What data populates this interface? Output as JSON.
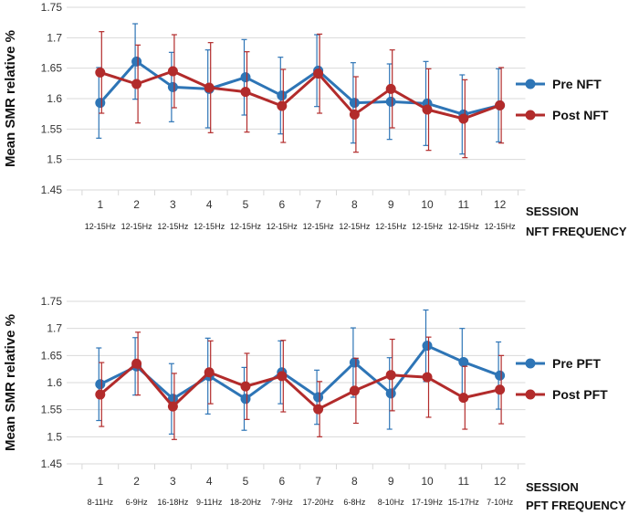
{
  "chart_data": [
    {
      "type": "line",
      "ylabel": "Mean SMR relative  %",
      "ylim": [
        1.45,
        1.75
      ],
      "yticks": [
        "1.45",
        "1.5",
        "1.55",
        "1.6",
        "1.65",
        "1.7",
        "1.75"
      ],
      "yticks_values": [
        1.45,
        1.5,
        1.55,
        1.6,
        1.65,
        1.7,
        1.75
      ],
      "categories": [
        "1",
        "2",
        "3",
        "4",
        "5",
        "6",
        "7",
        "8",
        "9",
        "10",
        "11",
        "12"
      ],
      "sublabels": [
        "12-15Hz",
        "12-15Hz",
        "12-15Hz",
        "12-15Hz",
        "12-15Hz",
        "12-15Hz",
        "12-15Hz",
        "12-15Hz",
        "12-15Hz",
        "12-15Hz",
        "12-15Hz",
        "12-15Hz"
      ],
      "xlabel_line1": "SESSION",
      "xlabel_line2": "NFT FREQUENCY",
      "gridlines": true,
      "legend_position": "right",
      "series": [
        {
          "name": "Pre NFT",
          "color": "#2e75b6",
          "values": [
            1.593,
            1.661,
            1.619,
            1.616,
            1.635,
            1.605,
            1.646,
            1.593,
            1.595,
            1.592,
            1.574,
            1.589
          ],
          "errors": [
            0.058,
            0.062,
            0.057,
            0.064,
            0.062,
            0.063,
            0.059,
            0.066,
            0.062,
            0.069,
            0.065,
            0.06
          ]
        },
        {
          "name": "Post NFT",
          "color": "#b22b2b",
          "values": [
            1.643,
            1.624,
            1.645,
            1.618,
            1.611,
            1.588,
            1.641,
            1.574,
            1.616,
            1.582,
            1.567,
            1.589
          ],
          "errors": [
            0.067,
            0.064,
            0.06,
            0.074,
            0.066,
            0.06,
            0.065,
            0.062,
            0.064,
            0.067,
            0.064,
            0.062
          ]
        }
      ]
    },
    {
      "type": "line",
      "ylabel": "Mean SMR relative %",
      "ylim": [
        1.45,
        1.75
      ],
      "yticks": [
        "1.45",
        "1.5",
        "1.55",
        "1.6",
        "1.65",
        "1.7",
        "1.75"
      ],
      "yticks_values": [
        1.45,
        1.5,
        1.55,
        1.6,
        1.65,
        1.7,
        1.75
      ],
      "categories": [
        "1",
        "2",
        "3",
        "4",
        "5",
        "6",
        "7",
        "8",
        "9",
        "10",
        "11",
        "12"
      ],
      "sublabels": [
        "8-11Hz",
        "6-9Hz",
        "16-18Hz",
        "9-11Hz",
        "18-20Hz",
        "7-9Hz",
        "17-20Hz",
        "6-8Hz",
        "8-10Hz",
        "17-19Hz",
        "15-17Hz",
        "7-10Hz"
      ],
      "xlabel_line1": "SESSION",
      "xlabel_line2": "PFT FREQUENCY",
      "gridlines": true,
      "legend_position": "right",
      "series": [
        {
          "name": "Pre PFT",
          "color": "#2e75b6",
          "values": [
            1.597,
            1.63,
            1.57,
            1.612,
            1.57,
            1.619,
            1.573,
            1.637,
            1.58,
            1.668,
            1.638,
            1.613
          ],
          "errors": [
            0.067,
            0.053,
            0.065,
            0.07,
            0.058,
            0.058,
            0.05,
            0.064,
            0.066,
            0.066,
            0.062,
            0.062
          ]
        },
        {
          "name": "Post PFT",
          "color": "#b22b2b",
          "values": [
            1.578,
            1.635,
            1.556,
            1.619,
            1.593,
            1.612,
            1.551,
            1.585,
            1.614,
            1.61,
            1.572,
            1.587
          ],
          "errors": [
            0.059,
            0.058,
            0.061,
            0.058,
            0.061,
            0.066,
            0.051,
            0.06,
            0.066,
            0.074,
            0.058,
            0.063
          ]
        }
      ]
    }
  ]
}
